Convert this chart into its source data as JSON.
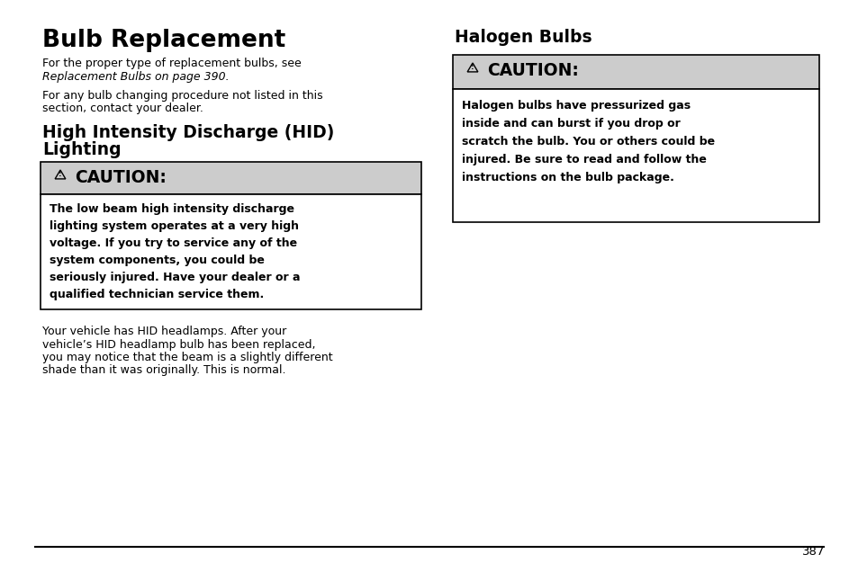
{
  "bg_color": "#ffffff",
  "page_number": "387",
  "left_col": {
    "title": "Bulb Replacement",
    "para1_line1": "For the proper type of replacement bulbs, see",
    "para1_line2": "Replacement Bulbs on page 390.",
    "para2_line1": "For any bulb changing procedure not listed in this",
    "para2_line2": "section, contact your dealer.",
    "section2_line1": "High Intensity Discharge (HID)",
    "section2_line2": "Lighting",
    "caution_bg": "#cccccc",
    "caution_body_lines": [
      "The low beam high intensity discharge",
      "lighting system operates at a very high",
      "voltage. If you try to service any of the",
      "system components, you could be",
      "seriously injured. Have your dealer or a",
      "qualified technician service them."
    ],
    "bottom_lines": [
      "Your vehicle has HID headlamps. After your",
      "vehicle’s HID headlamp bulb has been replaced,",
      "you may notice that the beam is a slightly different",
      "shade than it was originally. This is normal."
    ]
  },
  "right_col": {
    "title": "Halogen Bulbs",
    "caution_bg": "#cccccc",
    "caution_body_lines": [
      "Halogen bulbs have pressurized gas",
      "inside and can burst if you drop or",
      "scratch the bulb. You or others could be",
      "injured. Be sure to read and follow the",
      "instructions on the bulb package."
    ]
  }
}
